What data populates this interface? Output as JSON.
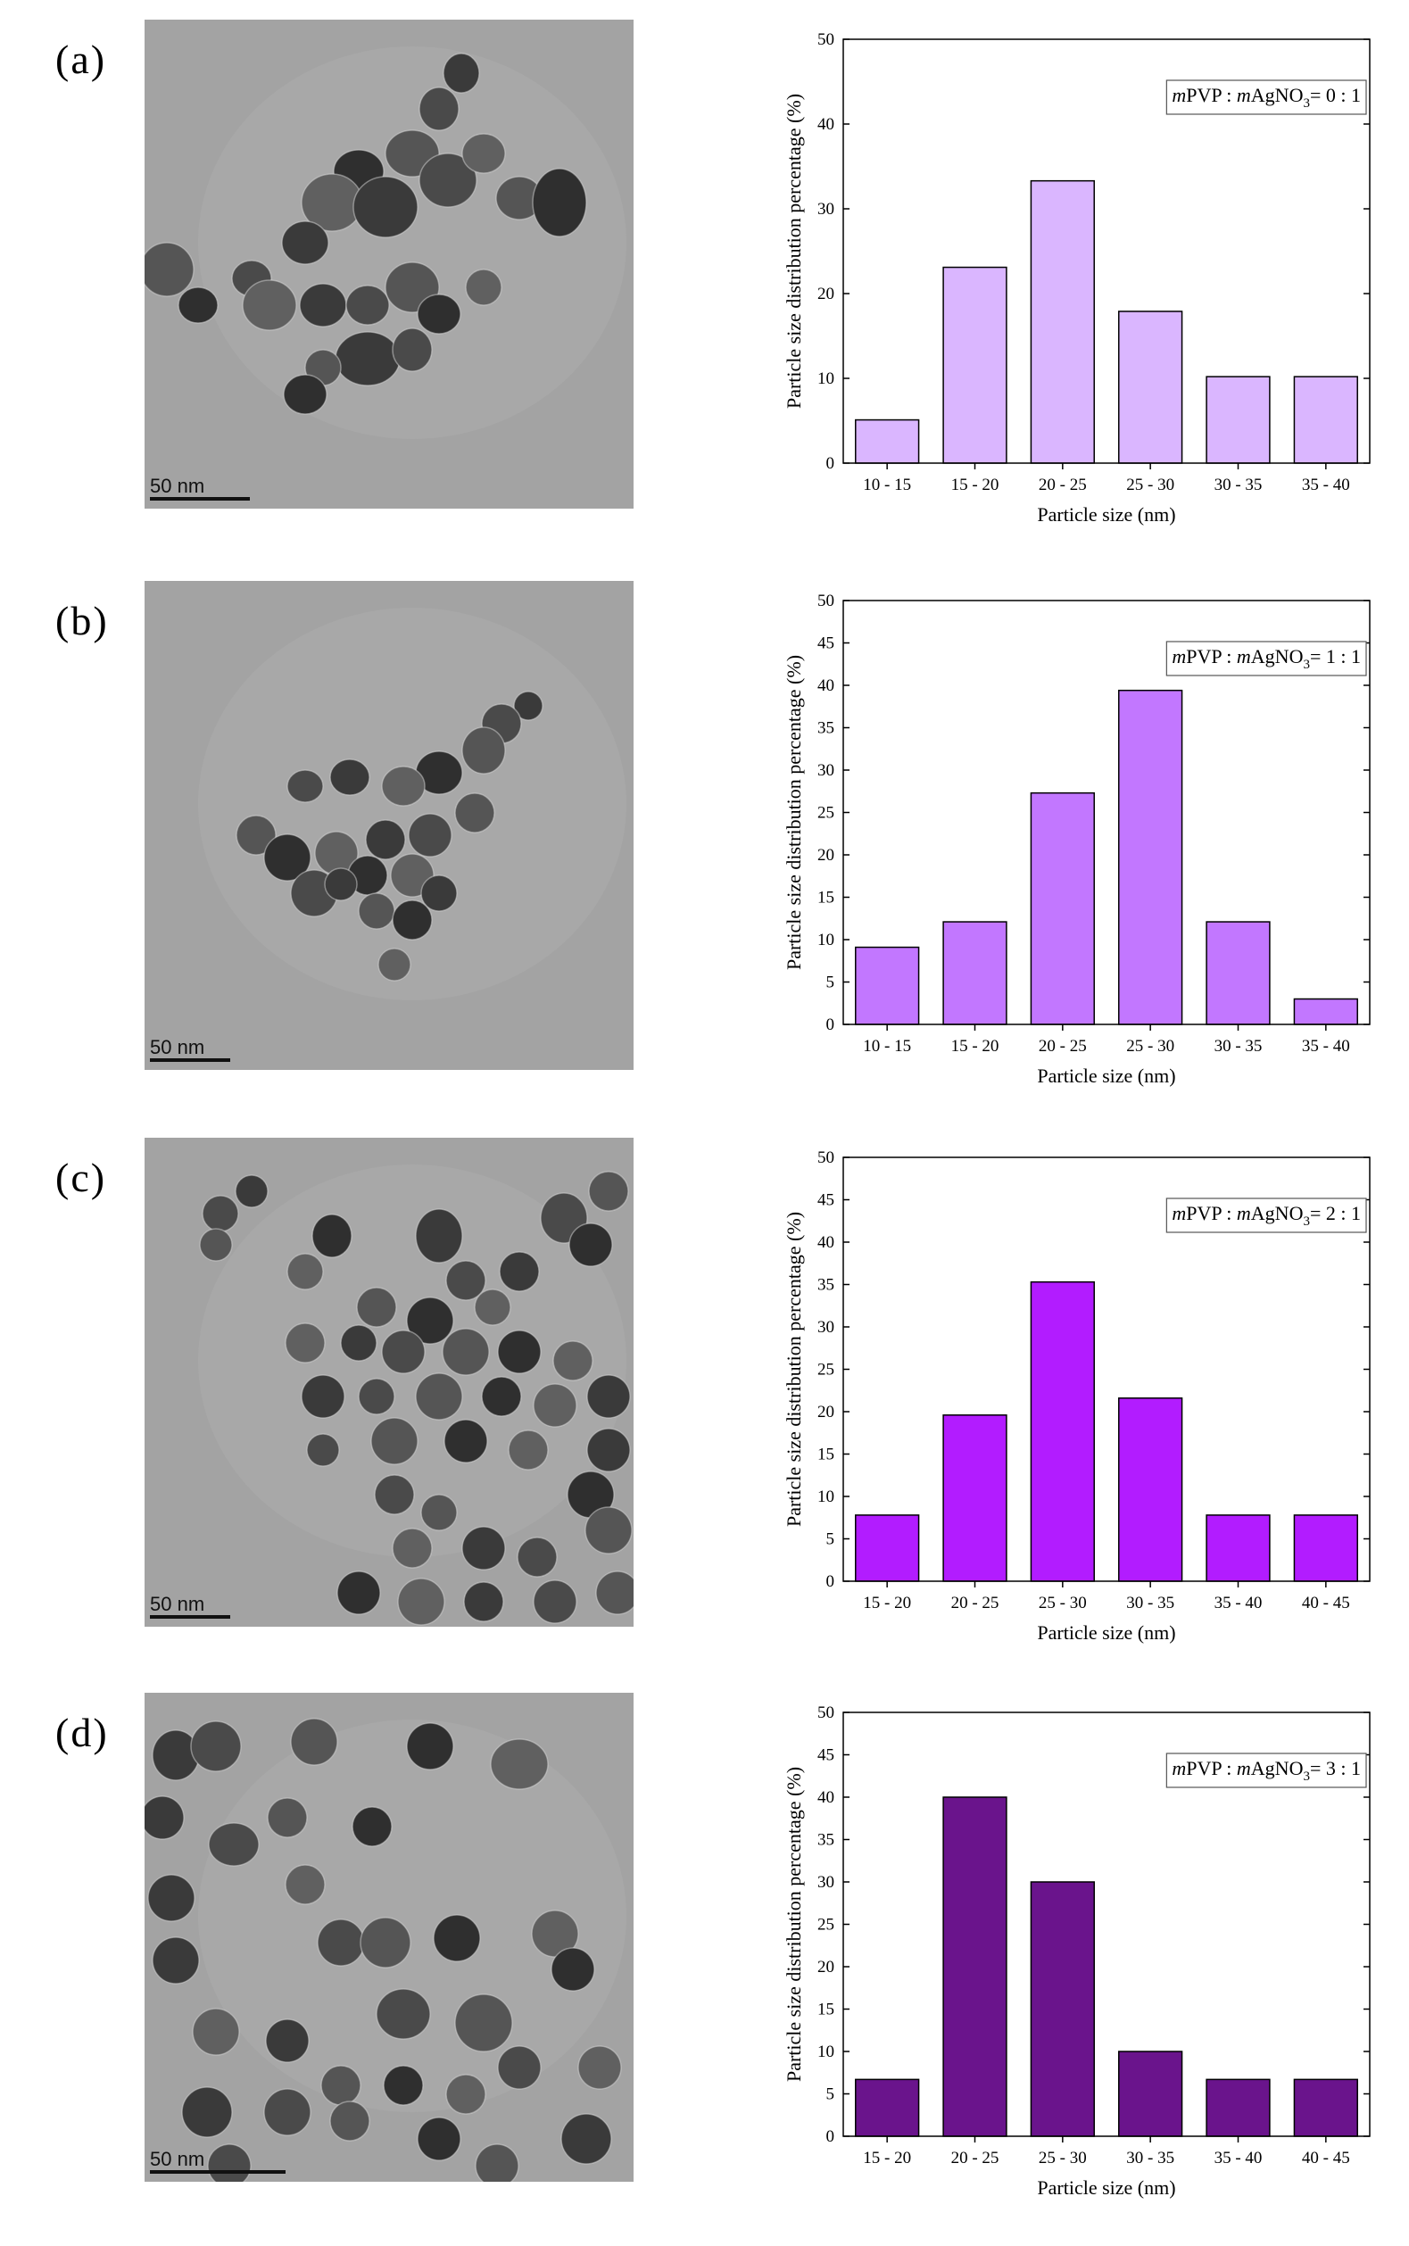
{
  "panels": [
    {
      "label": "(a)",
      "scale_bar": "50 nm",
      "legend": {
        "m1": "m",
        "name1": "PVP : ",
        "m2": "m",
        "name2": "AgNO",
        "sub": "3",
        "ratio": "= 0 : 1"
      }
    },
    {
      "label": "(b)",
      "scale_bar": "50 nm",
      "legend": {
        "m1": "m",
        "name1": "PVP : ",
        "m2": "m",
        "name2": "AgNO",
        "sub": "3",
        "ratio": "= 1 : 1"
      }
    },
    {
      "label": "(c)",
      "scale_bar": "50 nm",
      "legend": {
        "m1": "m",
        "name1": "PVP : ",
        "m2": "m",
        "name2": "AgNO",
        "sub": "3",
        "ratio": "= 2 : 1"
      }
    },
    {
      "label": "(d)",
      "scale_bar": "50 nm",
      "legend": {
        "m1": "m",
        "name1": "PVP : ",
        "m2": "m",
        "name2": "AgNO",
        "sub": "3",
        "ratio": "= 3 : 1"
      }
    }
  ],
  "colors": {
    "a": "#dab6ff",
    "b": "#c277ff",
    "c": "#b21cff",
    "d": "#6a148c",
    "tem_background": "#a3a3a3",
    "particle": "#3f3f3f"
  },
  "chart_data": [
    {
      "type": "bar",
      "categories": [
        "10 - 15",
        "15 - 20",
        "20 - 25",
        "25 - 30",
        "30 - 35",
        "35 - 40"
      ],
      "values": [
        5.1,
        23.1,
        33.3,
        17.9,
        10.2,
        10.2
      ],
      "xlabel": "Particle size (nm)",
      "ylabel": "Particle size distribution percentage (%)",
      "ylim": [
        0,
        50
      ],
      "yticks": [
        0,
        10,
        20,
        30,
        40,
        50
      ],
      "legend_placement": "top-right",
      "color": "#dab6ff"
    },
    {
      "type": "bar",
      "categories": [
        "10 - 15",
        "15 - 20",
        "20 - 25",
        "25 - 30",
        "30 - 35",
        "35 - 40"
      ],
      "values": [
        9.1,
        12.1,
        27.3,
        39.4,
        12.1,
        3.0
      ],
      "xlabel": "Particle size (nm)",
      "ylabel": "Particle size distribution percentage (%)",
      "ylim": [
        0,
        50
      ],
      "yticks": [
        0,
        5,
        10,
        15,
        20,
        25,
        30,
        35,
        40,
        45,
        50
      ],
      "legend_placement": "top-right",
      "color": "#c277ff"
    },
    {
      "type": "bar",
      "categories": [
        "15 - 20",
        "20 - 25",
        "25 - 30",
        "30 - 35",
        "35 - 40",
        "40 - 45"
      ],
      "values": [
        7.8,
        19.6,
        35.3,
        21.6,
        7.8,
        7.8
      ],
      "xlabel": "Particle size (nm)",
      "ylabel": "Particle size distribution percentage (%)",
      "ylim": [
        0,
        50
      ],
      "yticks": [
        0,
        5,
        10,
        15,
        20,
        25,
        30,
        35,
        40,
        45,
        50
      ],
      "legend_placement": "top-right",
      "color": "#b21cff"
    },
    {
      "type": "bar",
      "categories": [
        "15 - 20",
        "20 - 25",
        "25 - 30",
        "30 - 35",
        "35 - 40",
        "40 - 45"
      ],
      "values": [
        6.7,
        40.0,
        30.0,
        10.0,
        6.7,
        6.7
      ],
      "xlabel": "Particle size (nm)",
      "ylabel": "Particle size distribution percentage (%)",
      "ylim": [
        0,
        50
      ],
      "yticks": [
        0,
        5,
        10,
        15,
        20,
        25,
        30,
        35,
        40,
        45,
        50
      ],
      "legend_placement": "top-right",
      "color": "#6a148c"
    }
  ]
}
